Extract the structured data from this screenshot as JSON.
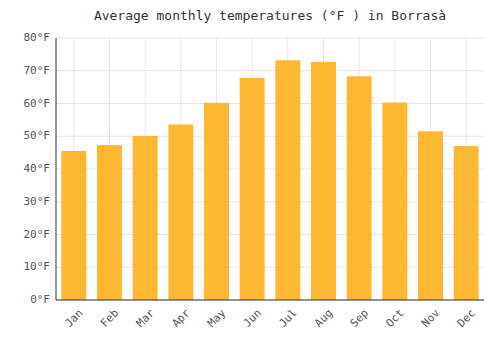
{
  "chart_data": {
    "type": "bar",
    "title": "Average monthly temperatures (°F ) in Borrasà",
    "categories": [
      "Jan",
      "Feb",
      "Mar",
      "Apr",
      "May",
      "Jun",
      "Jul",
      "Aug",
      "Sep",
      "Oct",
      "Nov",
      "Dec"
    ],
    "values": [
      45.5,
      47.3,
      50.1,
      53.6,
      60.2,
      67.8,
      73.2,
      72.7,
      68.3,
      60.3,
      51.5,
      47.0
    ],
    "color": "#FDB833",
    "ylim": [
      0,
      80
    ],
    "yticks": [
      {
        "value": 0,
        "label": "0°F"
      },
      {
        "value": 10,
        "label": "10°F"
      },
      {
        "value": 20,
        "label": "20°F"
      },
      {
        "value": 30,
        "label": "30°F"
      },
      {
        "value": 40,
        "label": "40°F"
      },
      {
        "value": 50,
        "label": "50°F"
      },
      {
        "value": 60,
        "label": "60°F"
      },
      {
        "value": 70,
        "label": "70°F"
      },
      {
        "value": 80,
        "label": "80°F"
      }
    ],
    "grid": true
  }
}
